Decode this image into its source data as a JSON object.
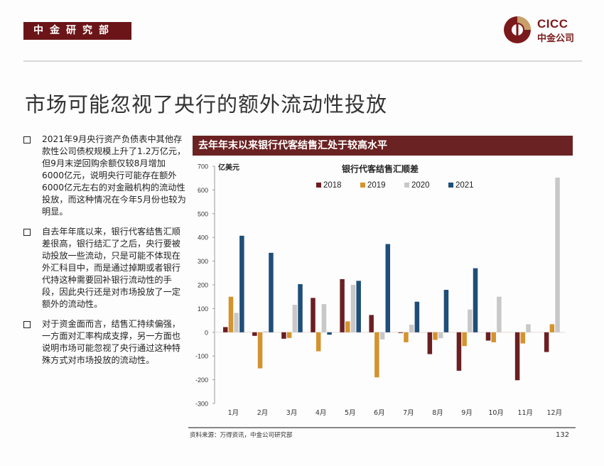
{
  "header": {
    "department": "中金研究部",
    "logo_en": "CICC",
    "logo_cn": "中金公司"
  },
  "page_title": "市场可能忽视了央行的额外流动性投放",
  "bullets": [
    {
      "text": "2021年9月央行资产负债表中其他存款性公司债权规模上升了1.2万亿元，但9月末逆回购余额仅较8月增加6000亿元，说明央行可能存在额外6000亿元左右的对金融机构的流动性投放，而这种情况在今年5月份也较为明显。"
    },
    {
      "text": "自去年年底以来，银行代客结售汇顺差很高，银行结汇了之后，央行要被动投放一些流动，只是可能不体现在外汇科目中，而是通过掉期或者银行代持这种需要回补银行流动性的手段，因此央行还是对市场投放了一定额外的流动性。"
    },
    {
      "text": "对于资金面而言，结售汇持续偏强，一方面对汇率构成支撑，另一方面也说明市场可能忽视了央行通过这种特殊方式对市场投放的流动性。"
    }
  ],
  "chart_header": "去年年末以来银行代客结售汇处于较高水平",
  "footer": {
    "source": "资料来源：万得资讯，中金公司研究部",
    "page_number": "132"
  },
  "colors": {
    "brand": "#6b1518",
    "s2018": "#6b1f22",
    "s2019": "#d4932e",
    "s2020": "#c8c8c8",
    "s2021": "#1f4e79"
  },
  "chart_data": {
    "type": "bar",
    "title": "银行代客结售汇顺差",
    "ylabel": "亿美元",
    "xlabel": "",
    "categories": [
      "1月",
      "2月",
      "3月",
      "4月",
      "5月",
      "6月",
      "7月",
      "8月",
      "9月",
      "10月",
      "11月",
      "12月"
    ],
    "yticks": [
      "700",
      "600",
      "500",
      "400",
      "300",
      "200",
      "100",
      "0",
      "-100",
      "-200",
      "-300"
    ],
    "ylim": [
      -300,
      700
    ],
    "legend_position": "top-center",
    "grid": false,
    "series": [
      {
        "name": "2018",
        "values": [
          22,
          -15,
          -27,
          145,
          224,
          73,
          -3,
          -92,
          -162,
          -35,
          -202,
          -83
        ]
      },
      {
        "name": "2019",
        "values": [
          150,
          -152,
          -24,
          -80,
          46,
          -190,
          -42,
          -32,
          -58,
          -42,
          -47,
          34
        ]
      },
      {
        "name": "2020",
        "values": [
          82,
          4,
          116,
          119,
          200,
          -30,
          32,
          -25,
          96,
          150,
          34,
          652
        ]
      },
      {
        "name": "2021",
        "values": [
          407,
          335,
          203,
          -10,
          217,
          372,
          129,
          179,
          270,
          null,
          null,
          null
        ]
      }
    ]
  }
}
